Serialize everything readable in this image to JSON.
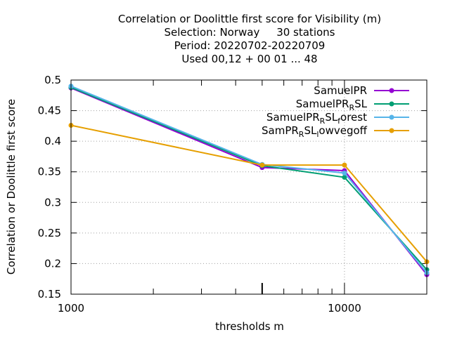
{
  "chart_data": {
    "type": "line",
    "title": [
      "Correlation or Doolittle first score  for Visibility (m)",
      "Selection: Norway     30 stations",
      "Period: 20220702-20220709",
      "Used  00,12  + 00 01 ... 48"
    ],
    "xlabel": "thresholds m",
    "ylabel": "Correlation or Doolittle first score",
    "xscale": "log",
    "xlim": [
      1000,
      20000
    ],
    "ylim": [
      0.15,
      0.5
    ],
    "x_tick_labels": [
      "1000",
      "10000"
    ],
    "y_tick_labels": [
      "0.15",
      "0.2",
      "0.25",
      "0.3",
      "0.35",
      "0.4",
      "0.45",
      "0.5"
    ],
    "x": [
      1000,
      5000,
      10000,
      20000
    ],
    "grid": true,
    "legend_position": "top-right",
    "series": [
      {
        "name": "SamuelPR",
        "color": "#9400d3",
        "values": [
          0.487,
          0.357,
          0.352,
          0.182
        ]
      },
      {
        "name": "SamuelPR_RSL",
        "color": "#009e73",
        "values": [
          0.488,
          0.36,
          0.341,
          0.19
        ]
      },
      {
        "name": "SamuelPR_RSL_forest",
        "color": "#56b4e9",
        "values": [
          0.49,
          0.362,
          0.348,
          0.185
        ]
      },
      {
        "name": "SamPR_RSL_lowvegoff",
        "color": "#e69f00",
        "values": [
          0.426,
          0.361,
          0.361,
          0.203
        ]
      }
    ]
  },
  "legend_labels": [
    {
      "main": "SamuelPR",
      "parts": []
    },
    {
      "main": "SamuelPR",
      "parts": [
        [
          "R",
          "sub"
        ],
        [
          "SL",
          "base"
        ]
      ]
    },
    {
      "main": "SamuelPR",
      "parts": [
        [
          "R",
          "sub"
        ],
        [
          "SL",
          "base"
        ],
        [
          "f",
          "sub"
        ],
        [
          "orest",
          "base"
        ]
      ]
    },
    {
      "main": "SamPR",
      "parts": [
        [
          "R",
          "sub"
        ],
        [
          "SL",
          "base"
        ],
        [
          "l",
          "sub"
        ],
        [
          "owvegoff",
          "base"
        ]
      ]
    }
  ]
}
